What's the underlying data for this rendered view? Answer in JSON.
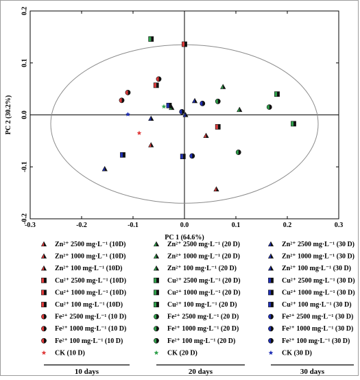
{
  "chart_data": {
    "type": "scatter",
    "title": "",
    "xlabel": "PC 1 (64.6%)",
    "ylabel": "PC 2 (30.2%)",
    "xlim": [
      -0.3,
      0.3
    ],
    "ylim": [
      -0.2,
      0.2
    ],
    "x_ticks": [
      "-0.3",
      "-0.2",
      "-0.1",
      "0.0",
      "0.1",
      "0.2",
      "0.3"
    ],
    "y_ticks": [
      "0.2",
      "0.1",
      "0.0",
      "-0.1",
      "-0.2"
    ],
    "grid": false,
    "confidence_ellipse": true,
    "colors": {
      "10D": "#e03a3a",
      "20D": "#2ea04a",
      "30D": "#1f2fb5",
      "edge": "#111111"
    },
    "legend_placement": "bottom",
    "groups": [
      {
        "label": "10 days",
        "entries": [
          {
            "symbol": "triangle",
            "label": "Zn²⁺ 2500 mg·L⁻¹ (10D)",
            "points": [
              [
                -0.065,
                -0.058
              ]
            ]
          },
          {
            "symbol": "triangle",
            "label": "Zn²⁺ 1000 mg·L⁻¹ (10D)",
            "points": [
              [
                0.042,
                -0.04
              ]
            ]
          },
          {
            "symbol": "triangle",
            "label": "Zn²⁺ 100 mg·L⁻¹ (10D)",
            "points": [
              [
                0.062,
                -0.143
              ]
            ]
          },
          {
            "symbol": "square",
            "label": "Cu²⁺ 2500 mg·L⁻¹ (10D)",
            "points": [
              [
                0.0,
                0.136
              ]
            ]
          },
          {
            "symbol": "square",
            "label": "Cu²⁺ 1000 mg·L⁻¹ (10D)",
            "points": [
              [
                -0.055,
                0.057
              ]
            ]
          },
          {
            "symbol": "square",
            "label": "Cu²⁺ 100 mg·L⁻¹ (10D)",
            "points": [
              [
                0.065,
                -0.023
              ]
            ]
          },
          {
            "symbol": "circle",
            "label": "Fe²⁺ 2500 mg·L⁻¹ (10 D)",
            "points": [
              [
                -0.05,
                0.069
              ]
            ]
          },
          {
            "symbol": "circle",
            "label": "Fe²⁺ 1000 mg·L⁻¹ (10 D)",
            "points": [
              [
                -0.11,
                0.043
              ]
            ]
          },
          {
            "symbol": "circle",
            "label": "Fe²⁺ 100 mg·L⁻¹ (10 D)",
            "points": [
              [
                -0.122,
                0.028
              ]
            ]
          },
          {
            "symbol": "star",
            "label": "CK (10 D)",
            "points": [
              [
                -0.088,
                -0.035
              ]
            ]
          }
        ]
      },
      {
        "label": "20 days",
        "entries": [
          {
            "symbol": "triangle",
            "label": "Zn²⁺ 2500 mg·L⁻¹ (20 D)",
            "points": [
              [
                0.075,
                0.054
              ]
            ]
          },
          {
            "symbol": "triangle",
            "label": "Zn²⁺ 1000 mg·L⁻¹ (20 D)",
            "points": [
              [
                0.107,
                0.01
              ]
            ]
          },
          {
            "symbol": "triangle",
            "label": "Zn²⁺ 100 mg·L⁻¹ (20 D)",
            "points": [
              [
                -0.025,
                0.014
              ]
            ]
          },
          {
            "symbol": "square",
            "label": "Cu²⁺ 2500 mg·L⁻¹ (20 D)",
            "points": [
              [
                -0.065,
                0.146
              ]
            ]
          },
          {
            "symbol": "square",
            "label": "Cu²⁺ 1000 mg·L⁻¹ (20 D)",
            "points": [
              [
                0.18,
                0.04
              ]
            ]
          },
          {
            "symbol": "square",
            "label": "Cu²⁺ 100 mg·L⁻¹ (20 D)",
            "points": [
              [
                0.212,
                -0.017
              ]
            ]
          },
          {
            "symbol": "circle",
            "label": "Fe²⁺ 2500 mg·L⁻¹ (20 D)",
            "points": [
              [
                0.065,
                0.026
              ]
            ]
          },
          {
            "symbol": "circle",
            "label": "Fe²⁺ 1000 mg·L⁻¹ (20 D)",
            "points": [
              [
                0.165,
                0.015
              ]
            ]
          },
          {
            "symbol": "circle",
            "label": "Fe²⁺ 100 mg·L⁻¹ (20 D)",
            "points": [
              [
                0.105,
                -0.072
              ]
            ]
          },
          {
            "symbol": "star",
            "label": "CK (20 D)",
            "points": [
              [
                -0.04,
                0.016
              ]
            ]
          }
        ]
      },
      {
        "label": "30 days",
        "entries": [
          {
            "symbol": "triangle",
            "label": "Zn²⁺ 2500 mg·L⁻¹ (30 D)",
            "points": [
              [
                -0.155,
                -0.104
              ]
            ]
          },
          {
            "symbol": "triangle",
            "label": "Zn²⁺ 1000 mg·L⁻¹ (30 D)",
            "points": [
              [
                0.02,
                0.027
              ]
            ]
          },
          {
            "symbol": "triangle",
            "label": "Zn²⁺ 100 mg·L⁻¹ (30 D)",
            "points": [
              [
                -0.065,
                -0.007
              ],
              [
                0.002,
                0.0
              ]
            ]
          },
          {
            "symbol": "square",
            "label": "Cu²⁺ 2500 mg·L⁻¹ (30 D)",
            "points": [
              [
                -0.12,
                -0.077
              ]
            ]
          },
          {
            "symbol": "square",
            "label": "Cu²⁺ 1000 mg·L⁻¹ (30 D)",
            "points": [
              [
                -0.03,
                0.018
              ]
            ]
          },
          {
            "symbol": "square",
            "label": "Cu²⁺ 100 mg·L⁻¹ (30 D)",
            "points": [
              [
                -0.003,
                -0.08
              ]
            ]
          },
          {
            "symbol": "circle",
            "label": "Fe²⁺ 2500 mg·L⁻¹ (30 D)",
            "points": [
              [
                0.035,
                0.022
              ]
            ]
          },
          {
            "symbol": "circle",
            "label": "Fe²⁺ 1000 mg·L⁻¹ (30 D)",
            "points": [
              [
                -0.005,
                0.006
              ]
            ]
          },
          {
            "symbol": "circle",
            "label": "Fe²⁺ 100 mg·L⁻¹ (30 D)",
            "points": [
              [
                0.015,
                -0.079
              ]
            ]
          },
          {
            "symbol": "star",
            "label": "CK (30 D)",
            "points": [
              [
                -0.11,
                0.001
              ]
            ]
          }
        ]
      }
    ]
  }
}
